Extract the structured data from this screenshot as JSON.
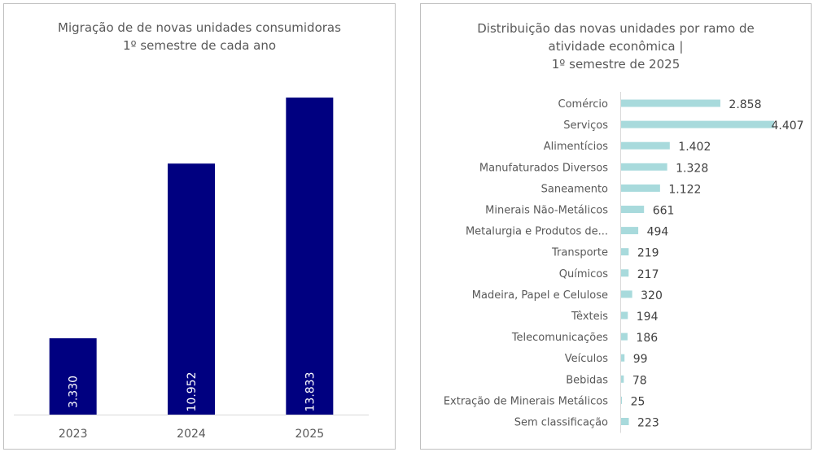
{
  "chart_data": [
    {
      "type": "bar",
      "title": "Migração de de novas unidades consumidoras",
      "subtitle": "1º semestre de cada ano",
      "categories": [
        "2023",
        "2024",
        "2025"
      ],
      "values": [
        3330,
        10952,
        13833
      ],
      "value_labels": [
        "3.330",
        "10.952",
        "13.833"
      ],
      "ylim": [
        0,
        15500
      ],
      "grid": false,
      "bar_color": "#000080",
      "label_color": "#ffffff"
    },
    {
      "type": "bar",
      "orientation": "horizontal",
      "title_lines": [
        "Distribuição das novas unidades por ramo de",
        "atividade econômica |",
        "1º semestre de 2025"
      ],
      "categories": [
        "Comércio",
        "Serviços",
        "Alimentícios",
        "Manufaturados Diversos",
        "Saneamento",
        "Minerais Não-Metálicos",
        "Metalurgia e Produtos de...",
        "Transporte",
        "Químicos",
        "Madeira, Papel e Celulose",
        "Têxteis",
        "Telecomunicações",
        "Veículos",
        "Bebidas",
        "Extração de Minerais Metálicos",
        "Sem classificação"
      ],
      "values": [
        2858,
        4407,
        1402,
        1328,
        1122,
        661,
        494,
        219,
        217,
        320,
        194,
        186,
        99,
        78,
        25,
        223
      ],
      "value_labels": [
        "2.858",
        "4.407",
        "1.402",
        "1.328",
        "1.122",
        "661",
        "494",
        "219",
        "217",
        "320",
        "194",
        "186",
        "99",
        "78",
        "25",
        "223"
      ],
      "xlim": [
        0,
        4407
      ],
      "grid": false,
      "bar_color": "#a8dadc"
    }
  ]
}
